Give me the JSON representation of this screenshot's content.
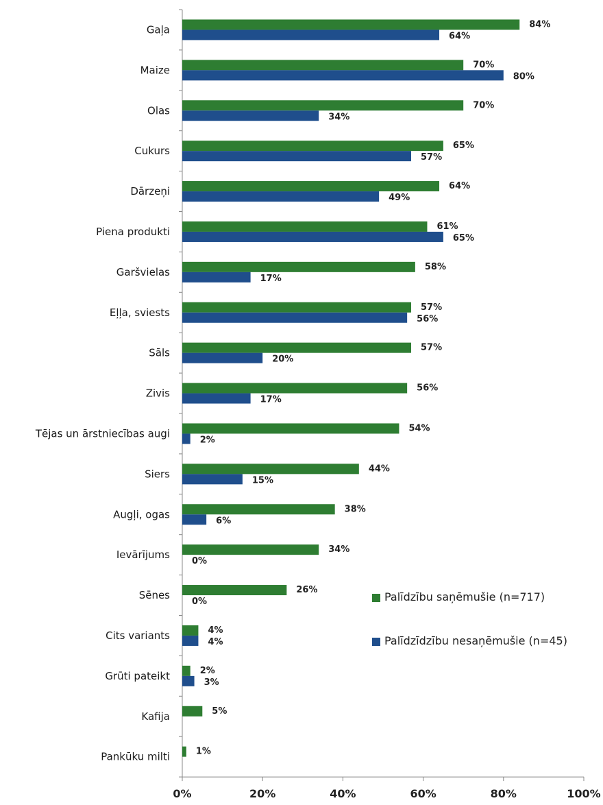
{
  "chart_data": {
    "type": "bar",
    "orientation": "horizontal",
    "categories": [
      "Gaļa",
      "Maize",
      "Olas",
      "Cukurs",
      "Dārzeņi",
      "Piena produkti",
      "Garšvielas",
      "Eļļa, sviests",
      "Sāls",
      "Zivis",
      "Tējas un ārstniecības augi",
      "Siers",
      "Augļi, ogas",
      "Ievārījums",
      "Sēnes",
      "Cits variants",
      "Grūti pateikt",
      "Kafija",
      "Pankūku milti"
    ],
    "series": [
      {
        "name": "Palīdzību saņēmušie (n=717)",
        "color": "#2e7d32",
        "values": [
          84,
          70,
          70,
          65,
          64,
          61,
          58,
          57,
          57,
          56,
          54,
          44,
          38,
          34,
          26,
          4,
          2,
          5,
          1
        ],
        "labels": [
          "84%",
          "70%",
          "70%",
          "65%",
          "64%",
          "61%",
          "58%",
          "57%",
          "57%",
          "56%",
          "54%",
          "44%",
          "38%",
          "34%",
          "26%",
          "4%",
          "2%",
          "5%",
          "1%"
        ]
      },
      {
        "name": "Palīdzīdzību nesaņēmušie (n=45)",
        "color": "#1f4e8c",
        "values": [
          64,
          80,
          34,
          57,
          49,
          65,
          17,
          56,
          20,
          17,
          2,
          15,
          6,
          0,
          0,
          4,
          3,
          null,
          null
        ],
        "labels": [
          "64%",
          "80%",
          "34%",
          "57%",
          "49%",
          "65%",
          "17%",
          "56%",
          "20%",
          "17%",
          "2%",
          "15%",
          "6%",
          "0%",
          "0%",
          "4%",
          "3%",
          "",
          ""
        ]
      }
    ],
    "xlim": [
      0,
      100
    ],
    "xticks": [
      "0%",
      "20%",
      "40%",
      "60%",
      "80%",
      "100%"
    ],
    "legend_position": "right-bottom",
    "grid": false
  },
  "legend": {
    "item1": "Palīdzību saņēmušie (n=717)",
    "item2": "Palīdzīdzību nesaņēmušie (n=45)"
  }
}
